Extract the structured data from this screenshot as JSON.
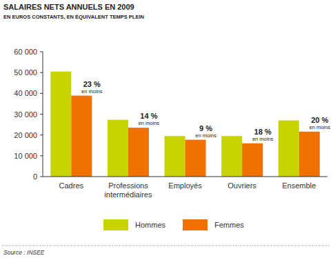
{
  "chart_data": {
    "type": "bar",
    "title": "SALAIRES NETS ANNUELS EN 2009",
    "subtitle": "EN EUROS CONSTANTS, EN ÉQUIVALENT TEMPS PLEIN",
    "source": "Source : INSEE",
    "categories": [
      "Cadres",
      "Professions intermédiaires",
      "Employés",
      "Ouvriers",
      "Ensemble"
    ],
    "series": [
      {
        "name": "Hommes",
        "color": "#c8d400",
        "values": [
          50500,
          27300,
          19500,
          19500,
          27000
        ]
      },
      {
        "name": "Femmes",
        "color": "#f07000",
        "values": [
          38900,
          23500,
          17700,
          16000,
          21600
        ]
      }
    ],
    "annotations": [
      {
        "text": "23 %",
        "detail": "en moins"
      },
      {
        "text": "14 %",
        "detail": "en moins"
      },
      {
        "text": "9 %",
        "detail": "en moins"
      },
      {
        "text": "18 %",
        "detail": "en moins"
      },
      {
        "text": "20 %",
        "detail": "en moins"
      }
    ],
    "ylim": [
      0,
      60000
    ],
    "yticks": [
      0,
      {
        "value": 10000,
        "label": "10 000"
      },
      {
        "value": 20000,
        "label": "20 000"
      },
      {
        "value": 30000,
        "label": "30 000"
      },
      {
        "value": 40000,
        "label": "40 000"
      },
      {
        "value": 50000,
        "label": "50 000"
      },
      {
        "value": 60000,
        "label": "60 000"
      }
    ],
    "grid": false,
    "legend": "bottom"
  }
}
